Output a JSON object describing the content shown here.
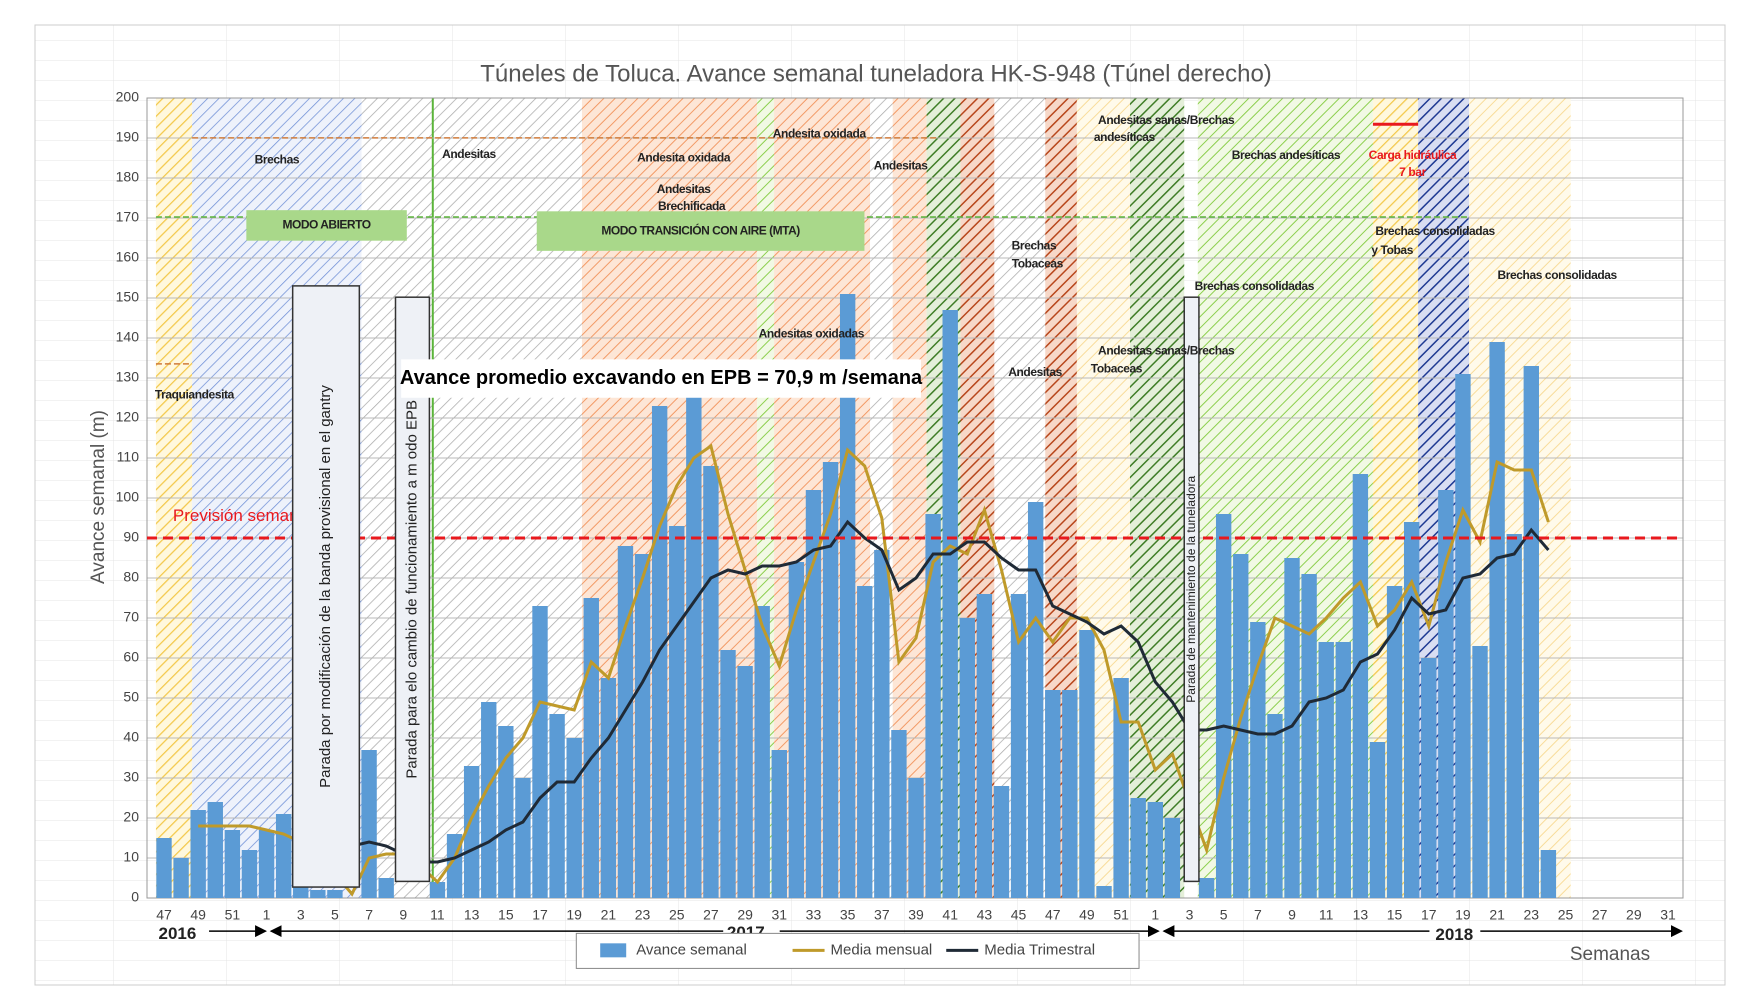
{
  "chart_data": {
    "type": "bar",
    "title": "Túneles de Toluca. Avance semanal tuneladora HK-S-948 (Túnel derecho)",
    "y_label": "Avance semanal (m)",
    "x_label": "Semanas",
    "categories": [
      "47",
      null,
      "49",
      null,
      "51",
      null,
      "1",
      null,
      "3",
      null,
      "5",
      null,
      "7",
      null,
      "9",
      null,
      "11",
      null,
      "13",
      null,
      "15",
      null,
      "17",
      null,
      "19",
      null,
      "21",
      null,
      "23",
      null,
      "25",
      null,
      "27",
      null,
      "29",
      null,
      "31",
      null,
      "33",
      null,
      "35",
      null,
      "37",
      null,
      "39",
      null,
      "41",
      null,
      "43",
      null,
      "45",
      null,
      "47",
      null,
      "49",
      null,
      "51",
      null,
      "1",
      null,
      "3",
      null,
      "5",
      null,
      "7",
      null,
      "9",
      null,
      "11",
      null,
      "13",
      null,
      "15",
      null,
      "17",
      null,
      "19",
      null,
      "21",
      null,
      "23",
      null,
      "25",
      null,
      "27",
      null,
      "29",
      null,
      "31"
    ],
    "years": [
      "2016",
      "2017",
      "2018"
    ],
    "series": [
      {
        "name": "Avance semanal",
        "type": "bar",
        "color": "#5b9bd5",
        "values": [
          15,
          10,
          22,
          24,
          17,
          12,
          17,
          21,
          3,
          2,
          2,
          0,
          37,
          5,
          0,
          0,
          4,
          16,
          33,
          49,
          43,
          30,
          73,
          46,
          40,
          75,
          55,
          88,
          86,
          123,
          93,
          126,
          108,
          62,
          58,
          73,
          37,
          84,
          102,
          109,
          151,
          78,
          87,
          42,
          30,
          96,
          147,
          70,
          76,
          28,
          76,
          99,
          52,
          52,
          67,
          3,
          55,
          25,
          24,
          20,
          0,
          5,
          96,
          86,
          69,
          46,
          85,
          81,
          64,
          64,
          106,
          39,
          78,
          94,
          60,
          102,
          131,
          63,
          139,
          91,
          133,
          12,
          null,
          null,
          null,
          null,
          null,
          null,
          null
        ]
      },
      {
        "name": "Media mensual",
        "type": "line",
        "color": "#bf9a2a",
        "values": [
          null,
          null,
          18,
          18,
          18,
          18,
          17,
          16,
          14,
          10,
          6,
          1,
          10,
          11,
          11,
          8,
          4,
          10,
          20,
          28,
          35,
          40,
          49,
          48,
          47,
          59,
          55,
          68,
          80,
          93,
          103,
          110,
          113,
          96,
          82,
          68,
          58,
          72,
          84,
          96,
          112,
          108,
          95,
          59,
          65,
          84,
          88,
          86,
          97,
          82,
          64,
          70,
          64,
          70,
          70,
          62,
          44,
          44,
          32,
          36,
          24,
          12,
          30,
          45,
          58,
          70,
          68,
          66,
          70,
          75,
          79,
          68,
          72,
          79,
          68,
          84,
          97,
          89,
          109,
          107,
          107,
          94,
          null,
          null,
          null,
          null,
          null,
          null,
          null
        ]
      },
      {
        "name": "Media Trimestral",
        "type": "line",
        "color": "#1f2a36",
        "values": [
          null,
          null,
          null,
          null,
          null,
          null,
          null,
          null,
          null,
          null,
          12,
          13,
          14,
          13,
          11,
          9,
          9,
          10,
          12,
          14,
          17,
          19,
          25,
          29,
          29,
          35,
          40,
          47,
          54,
          62,
          68,
          74,
          80,
          82,
          81,
          83,
          83,
          84,
          87,
          88,
          94,
          90,
          87,
          77,
          80,
          86,
          86,
          89,
          89,
          85,
          82,
          82,
          73,
          71,
          69,
          66,
          68,
          64,
          54,
          49,
          42,
          42,
          43,
          42,
          41,
          41,
          43,
          49,
          50,
          52,
          59,
          61,
          67,
          75,
          71,
          72,
          80,
          81,
          85,
          86,
          92,
          87,
          null,
          null,
          null,
          null,
          null,
          null,
          null
        ]
      }
    ],
    "reference_line": {
      "value": 90,
      "label": "Previsión semanal",
      "color": "#e8191e"
    },
    "ylim": [
      0,
      200
    ],
    "yticks": [
      0,
      10,
      20,
      30,
      40,
      50,
      60,
      70,
      80,
      90,
      100,
      110,
      120,
      130,
      140,
      150,
      160,
      170,
      180,
      190,
      200
    ],
    "grid": true,
    "average_note": "Avance promedio excavando en EPB = 70,9 m /semana",
    "stops": [
      "Parada por modificación de la banda provisional en el gantry",
      "Parada para elo cambio de funcionamiento a m odo EPB",
      "Parada de mantenimiento de la tuneladora"
    ],
    "modes": [
      "MODO ABIERTO",
      "MODO TRANSICIÓN CON AIRE (MTA)"
    ],
    "annotations": [
      "Brechas",
      "Andesitas",
      "Andesita oxidada",
      "Andesita oxidada",
      "Andesitas",
      "Brechificada",
      "Andesitas",
      "Brechas",
      "Tobaceas",
      "Andesitas oxidadas",
      "Andesitas sanas/Brechas",
      "andesíticas",
      "Brechas andesíticas",
      "Carga hidráulica",
      "7 bar",
      "Brechas consolidadas",
      "Brechas consolidadas",
      "y Tobas",
      "Brechas consolidadas",
      "Andesitas",
      "Andesitas sanas/Brechas",
      "Tobaceas",
      "Traquiandesita"
    ]
  }
}
